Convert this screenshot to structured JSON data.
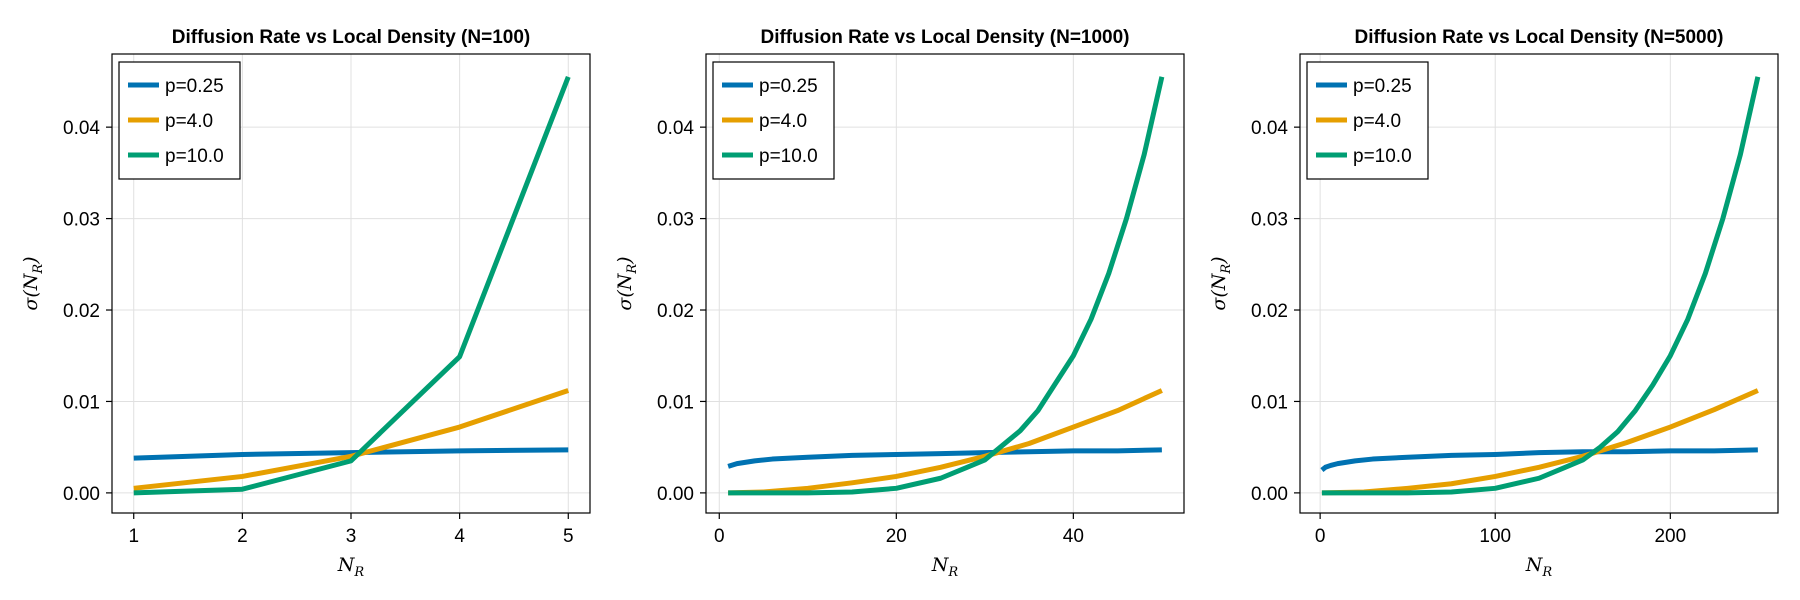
{
  "colors": {
    "p025": "#0072b2",
    "p40": "#e69f00",
    "p100": "#009e73"
  },
  "chart_data": [
    {
      "type": "line",
      "title": "Diffusion Rate vs Local Density (N=100)",
      "xlabel": "N_R",
      "ylabel": "σ(N_R)",
      "xlim": [
        0.8,
        5.2
      ],
      "ylim": [
        -0.0022,
        0.048
      ],
      "xticks": [
        1,
        2,
        3,
        4,
        5
      ],
      "xtick_labels": [
        "1",
        "2",
        "3",
        "4",
        "5"
      ],
      "yticks": [
        0,
        0.01,
        0.02,
        0.03,
        0.04
      ],
      "ytick_labels": [
        "0.00",
        "0.01",
        "0.02",
        "0.03",
        "0.04"
      ],
      "grid": true,
      "legend_position": "top-left",
      "series": [
        {
          "name": "p=0.25",
          "color": "#0072b2",
          "x": [
            1,
            2,
            3,
            4,
            5
          ],
          "y": [
            0.0038,
            0.0042,
            0.0044,
            0.0046,
            0.0047
          ]
        },
        {
          "name": "p=4.0",
          "color": "#e69f00",
          "x": [
            1,
            2,
            3,
            4,
            5
          ],
          "y": [
            0.0005,
            0.0018,
            0.004,
            0.0072,
            0.0112
          ]
        },
        {
          "name": "p=10.0",
          "color": "#009e73",
          "x": [
            1,
            2,
            3,
            4,
            5
          ],
          "y": [
            0.0,
            0.0004,
            0.0035,
            0.0149,
            0.0455
          ]
        }
      ]
    },
    {
      "type": "line",
      "title": "Diffusion Rate vs Local Density (N=1000)",
      "xlabel": "N_R",
      "ylabel": "σ(N_R)",
      "xlim": [
        -1.5,
        52.5
      ],
      "ylim": [
        -0.0022,
        0.048
      ],
      "xticks": [
        0,
        20,
        40
      ],
      "xtick_labels": [
        "0",
        "20",
        "40"
      ],
      "yticks": [
        0,
        0.01,
        0.02,
        0.03,
        0.04
      ],
      "ytick_labels": [
        "0.00",
        "0.01",
        "0.02",
        "0.03",
        "0.04"
      ],
      "grid": true,
      "legend_position": "top-left",
      "series": [
        {
          "name": "p=0.25",
          "color": "#0072b2",
          "x": [
            1,
            2,
            4,
            6,
            8,
            10,
            15,
            20,
            25,
            30,
            35,
            40,
            45,
            50
          ],
          "y": [
            0.0029,
            0.0032,
            0.0035,
            0.0037,
            0.0038,
            0.0039,
            0.0041,
            0.0042,
            0.0043,
            0.0044,
            0.0045,
            0.0046,
            0.0046,
            0.0047
          ]
        },
        {
          "name": "p=4.0",
          "color": "#e69f00",
          "x": [
            1,
            5,
            10,
            15,
            20,
            25,
            30,
            35,
            40,
            45,
            50
          ],
          "y": [
            0.0,
            0.0001,
            0.0005,
            0.0011,
            0.0018,
            0.0028,
            0.004,
            0.0054,
            0.0072,
            0.009,
            0.0112
          ]
        },
        {
          "name": "p=10.0",
          "color": "#009e73",
          "x": [
            1,
            10,
            15,
            20,
            25,
            28,
            30,
            32,
            34,
            36,
            38,
            40,
            42,
            44,
            46,
            48,
            50
          ],
          "y": [
            0.0,
            0.0,
            0.0001,
            0.0005,
            0.0016,
            0.0028,
            0.0036,
            0.0052,
            0.0068,
            0.009,
            0.012,
            0.015,
            0.019,
            0.024,
            0.03,
            0.037,
            0.0455
          ]
        }
      ]
    },
    {
      "type": "line",
      "title": "Diffusion Rate vs Local Density (N=5000)",
      "xlabel": "N_R",
      "ylabel": "σ(N_R)",
      "xlim": [
        -11.5,
        261.5
      ],
      "ylim": [
        -0.0022,
        0.048
      ],
      "xticks": [
        0,
        100,
        200
      ],
      "xtick_labels": [
        "0",
        "100",
        "200"
      ],
      "yticks": [
        0,
        0.01,
        0.02,
        0.03,
        0.04
      ],
      "ytick_labels": [
        "0.00",
        "0.01",
        "0.02",
        "0.03",
        "0.04"
      ],
      "grid": true,
      "legend_position": "top-left",
      "series": [
        {
          "name": "p=0.25",
          "color": "#0072b2",
          "x": [
            1,
            3,
            6,
            10,
            20,
            30,
            50,
            75,
            100,
            125,
            150,
            175,
            200,
            225,
            250
          ],
          "y": [
            0.0025,
            0.0028,
            0.003,
            0.0032,
            0.0035,
            0.0037,
            0.0039,
            0.0041,
            0.0042,
            0.0044,
            0.0045,
            0.0045,
            0.0046,
            0.0046,
            0.0047
          ]
        },
        {
          "name": "p=4.0",
          "color": "#e69f00",
          "x": [
            1,
            25,
            50,
            75,
            100,
            125,
            150,
            175,
            200,
            225,
            250
          ],
          "y": [
            0.0,
            0.0001,
            0.0005,
            0.001,
            0.0018,
            0.0028,
            0.004,
            0.0055,
            0.0072,
            0.0091,
            0.0112
          ]
        },
        {
          "name": "p=10.0",
          "color": "#009e73",
          "x": [
            1,
            50,
            75,
            100,
            125,
            140,
            150,
            160,
            170,
            180,
            190,
            200,
            210,
            220,
            230,
            240,
            250
          ],
          "y": [
            0.0,
            0.0,
            0.0001,
            0.0005,
            0.0016,
            0.0028,
            0.0036,
            0.005,
            0.0067,
            0.009,
            0.0118,
            0.015,
            0.019,
            0.024,
            0.03,
            0.037,
            0.0455
          ]
        }
      ]
    }
  ]
}
